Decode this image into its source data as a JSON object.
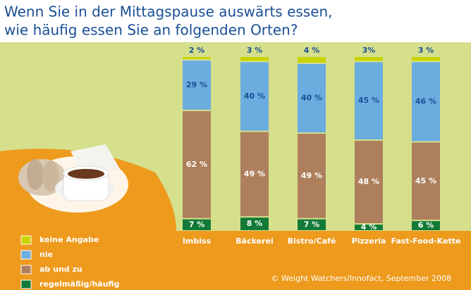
{
  "chart_data": {
    "type": "stacked_bar",
    "title": [
      "Wenn Sie in der Mittagspause auswärts essen,",
      "wie häufig essen Sie an folgenden Orten?"
    ],
    "categories": [
      "Imbiss",
      "Bäckerei",
      "Bistro/Café",
      "Pizzeria",
      "Fast-Food-Kette"
    ],
    "series": [
      {
        "name": "regelmäßig/häufig",
        "color": "#127a36",
        "label_color": "#ffffff",
        "values": [
          7,
          8,
          7,
          4,
          6
        ],
        "value_labels": [
          "7 %",
          "8 %",
          "7 %",
          "4 %",
          "6 %"
        ]
      },
      {
        "name": "ab und zu",
        "color": "#ad7f5c",
        "label_color": "#ffffff",
        "values": [
          62,
          49,
          49,
          48,
          45
        ],
        "value_labels": [
          "62 %",
          "49 %",
          "49 %",
          "48 %",
          "45 %"
        ]
      },
      {
        "name": "nie",
        "color": "#6cade0",
        "label_color": "#1a4f95",
        "values": [
          29,
          40,
          40,
          45,
          46
        ],
        "value_labels": [
          "29 %",
          "40 %",
          "40 %",
          "45 %",
          "46 %"
        ]
      },
      {
        "name": "keine Angabe",
        "color": "#c8d400",
        "label_color": "#1a4f95",
        "values": [
          2,
          3,
          4,
          3,
          3
        ],
        "value_labels": [
          "2 %",
          "3 %",
          "4 %",
          "3%",
          "3 %"
        ]
      }
    ],
    "ylim": [
      0,
      100
    ],
    "source": "© Weight Watchers/Innofact, September 2008"
  }
}
